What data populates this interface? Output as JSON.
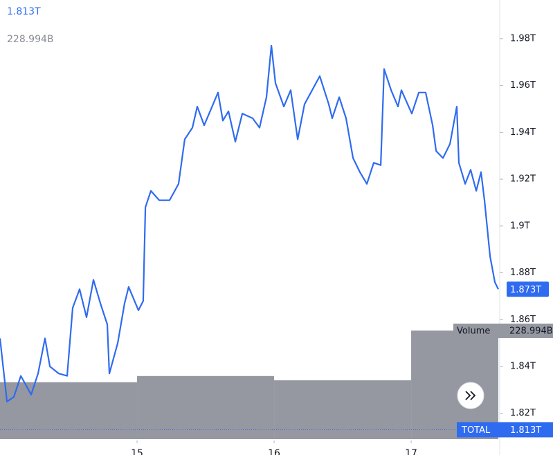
{
  "chart_data": {
    "type": "line",
    "xlim": [
      14,
      17.636
    ],
    "xticks": [
      15,
      16,
      17
    ],
    "ylim": [
      1.809,
      1.9965
    ],
    "yticks": [
      {
        "value": 1.98,
        "label": "1.98T"
      },
      {
        "value": 1.96,
        "label": "1.96T"
      },
      {
        "value": 1.94,
        "label": "1.94T"
      },
      {
        "value": 1.92,
        "label": "1.92T"
      },
      {
        "value": 1.9,
        "label": "1.9T"
      },
      {
        "value": 1.88,
        "label": "1.88T"
      },
      {
        "value": 1.86,
        "label": "1.86T"
      },
      {
        "value": 1.84,
        "label": "1.84T"
      },
      {
        "value": 1.82,
        "label": "1.82T"
      }
    ],
    "y2lim": [
      0,
      926
    ],
    "grid": false,
    "series": [
      {
        "type": "line",
        "color": "#2f6bf0",
        "x": [
          14.0,
          14.051,
          14.101,
          14.152,
          14.227,
          14.278,
          14.328,
          14.364,
          14.429,
          14.49,
          14.53,
          14.581,
          14.631,
          14.682,
          14.732,
          14.783,
          14.798,
          14.859,
          14.909,
          14.939,
          15.01,
          15.045,
          15.061,
          15.101,
          15.162,
          15.237,
          15.303,
          15.348,
          15.404,
          15.439,
          15.49,
          15.591,
          15.626,
          15.667,
          15.717,
          15.768,
          15.843,
          15.894,
          15.944,
          15.98,
          16.01,
          16.071,
          16.121,
          16.172,
          16.222,
          16.333,
          16.399,
          16.424,
          16.475,
          16.525,
          16.576,
          16.626,
          16.677,
          16.727,
          16.778,
          16.803,
          16.854,
          16.904,
          16.929,
          17.005,
          17.056,
          17.106,
          17.157,
          17.182,
          17.232,
          17.283,
          17.333,
          17.348,
          17.394,
          17.434,
          17.475,
          17.51,
          17.535,
          17.576,
          17.611,
          17.636
        ],
        "values": [
          1.852,
          1.825,
          1.827,
          1.836,
          1.828,
          1.837,
          1.852,
          1.84,
          1.837,
          1.836,
          1.865,
          1.873,
          1.861,
          1.877,
          1.867,
          1.858,
          1.837,
          1.85,
          1.867,
          1.874,
          1.864,
          1.868,
          1.908,
          1.915,
          1.911,
          1.911,
          1.918,
          1.937,
          1.942,
          1.951,
          1.943,
          1.957,
          1.945,
          1.949,
          1.936,
          1.948,
          1.946,
          1.942,
          1.955,
          1.977,
          1.961,
          1.951,
          1.958,
          1.937,
          1.952,
          1.964,
          1.952,
          1.946,
          1.955,
          1.946,
          1.929,
          1.923,
          1.918,
          1.927,
          1.926,
          1.967,
          1.958,
          1.951,
          1.958,
          1.948,
          1.957,
          1.957,
          1.943,
          1.932,
          1.929,
          1.935,
          1.951,
          1.927,
          1.918,
          1.924,
          1.915,
          1.923,
          1.911,
          1.887,
          1.876,
          1.873
        ]
      },
      {
        "type": "bar",
        "name": "Volume",
        "axis": "y2",
        "color": "#9598a1",
        "x": [
          14,
          15,
          16,
          17
        ],
        "values": [
          120,
          133,
          124,
          228.994
        ],
        "value_labels": [
          null,
          null,
          null,
          "228.994B"
        ]
      }
    ],
    "price_marker": {
      "value": 1.873,
      "label": "1.873T"
    },
    "total": {
      "label": "TOTAL",
      "value": 1.813,
      "value_label": "1.813T"
    }
  }
}
